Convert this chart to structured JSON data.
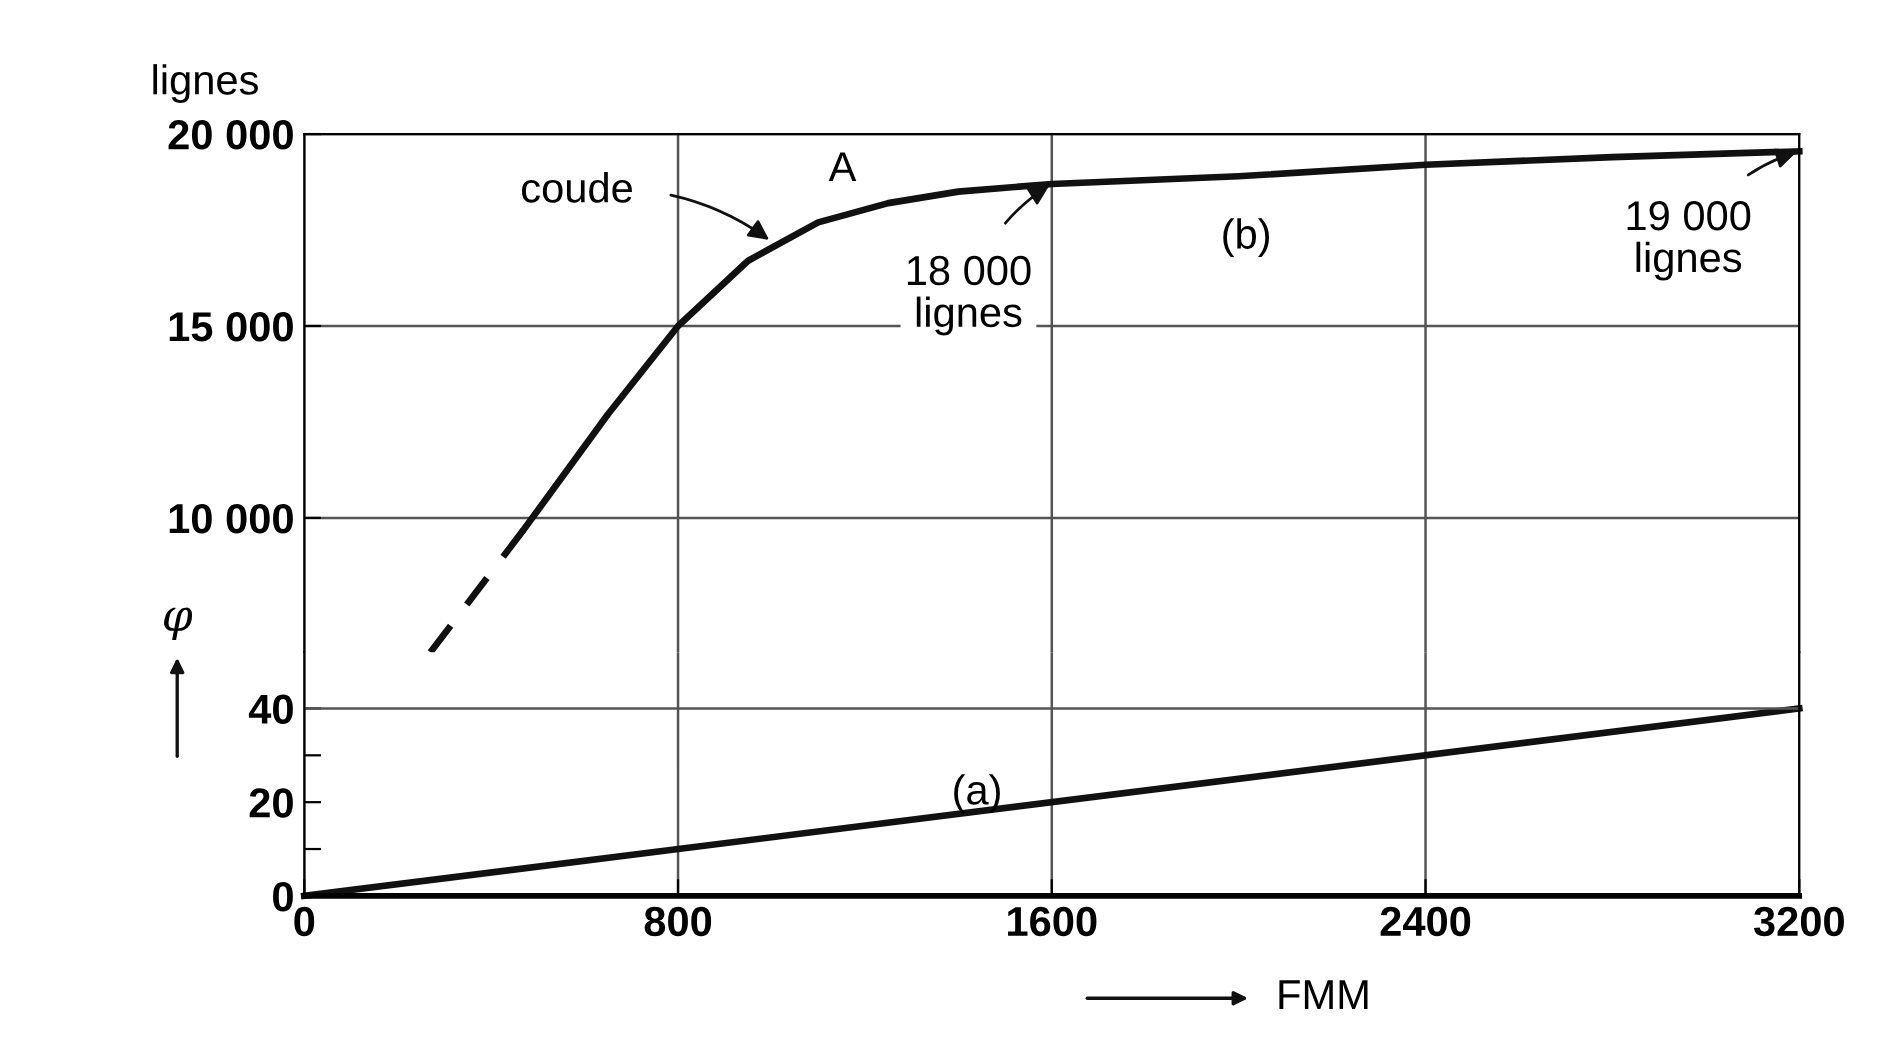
{
  "chart_data": [
    {
      "type": "line",
      "ylabel": "lignes",
      "xlim": [
        0,
        3200
      ],
      "ylim": [
        6500,
        20000
      ],
      "xticks": [
        0,
        800,
        1600,
        2400,
        3200
      ],
      "yticks": [
        {
          "value": 10000,
          "label": "10 000"
        },
        {
          "value": 15000,
          "label": "15 000"
        },
        {
          "value": 20000,
          "label": "20 000"
        }
      ],
      "tick_labels": "y",
      "grid": true,
      "series": [
        {
          "color": "#111111",
          "line_style": "dashed",
          "x": [
            270,
            470
          ],
          "values": [
            6500,
            9700
          ]
        },
        {
          "color": "#111111",
          "line_style": "solid",
          "x": [
            470,
            650,
            800,
            950,
            1100,
            1250,
            1400,
            1600,
            2000,
            2400,
            2800,
            3200
          ],
          "values": [
            9700,
            12700,
            15000,
            16700,
            17700,
            18200,
            18500,
            18700,
            18900,
            19200,
            19400,
            19550
          ]
        }
      ],
      "annotations": [
        {
          "text": "coude",
          "x": 1000,
          "y": 17200
        },
        "A",
        {
          "text": "18 000\nlignes",
          "x": 1600,
          "y": 18700
        },
        "(b)",
        {
          "text": "19 000\nlignes",
          "x": 3200,
          "y": 19550
        }
      ]
    },
    {
      "type": "line",
      "xlabel": "FMM",
      "ylabel": "φ",
      "xlim": [
        0,
        3200
      ],
      "ylim": [
        0,
        52
      ],
      "xticks": [
        0,
        800,
        1600,
        2400,
        3200
      ],
      "yticks": [
        0,
        {
          "value": 10,
          "label": null
        },
        20,
        {
          "value": 30,
          "label": null
        },
        40
      ],
      "grid": "x",
      "ref_lines": [
        {
          "axis": "y",
          "value": 40
        }
      ],
      "series": [
        {
          "color": "#111111",
          "line_style": "solid",
          "x": [
            0,
            3200
          ],
          "values": [
            0,
            40
          ]
        }
      ],
      "annotations": [
        "(a)"
      ]
    }
  ]
}
